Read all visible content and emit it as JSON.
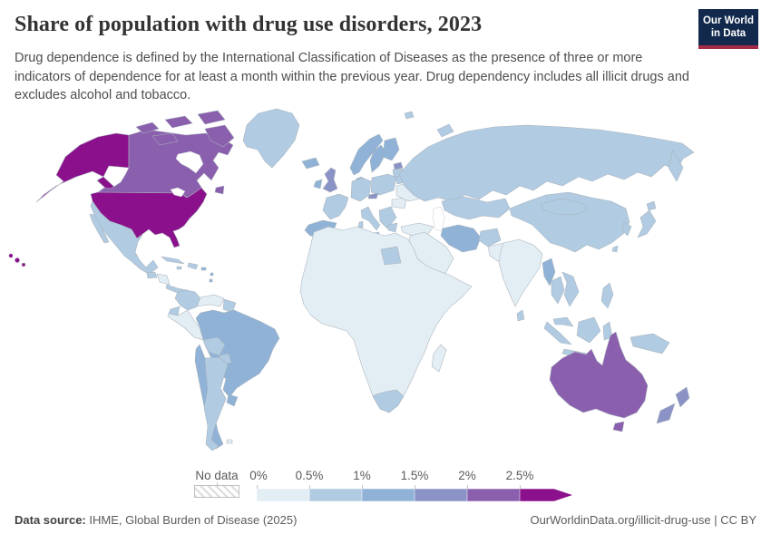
{
  "header": {
    "title": "Share of population with drug use disorders, 2023",
    "subtitle": "Drug dependence is defined by the International Classification of Diseases as the presence of three or more indicators of dependence for at least a month within the previous year. Drug dependency includes all illicit drugs and excludes alcohol and tobacco."
  },
  "logo": {
    "line1": "Our World",
    "line2": "in Data"
  },
  "legend": {
    "no_data_label": "No data",
    "ticks": [
      "0%",
      "0.5%",
      "1%",
      "1.5%",
      "2%",
      "2.5%"
    ]
  },
  "footer": {
    "source_label": "Data source:",
    "source_text": "IHME, Global Burden of Disease (2025)",
    "url_label": "OurWorldinData.org/illicit-drug-use",
    "divider": "|",
    "license_label": "CC BY"
  },
  "chart_data": {
    "type": "choropleth-map",
    "title": "Share of population with drug use disorders",
    "year": "2023",
    "unit": "share of population (%)",
    "legend_ticks": [
      "0%",
      "0.5%",
      "1%",
      "1.5%",
      "2%",
      "2.5%"
    ],
    "bins": [
      {
        "label": "0%–0.5%",
        "min": 0,
        "max": 0.5,
        "color": "#e2edf4"
      },
      {
        "label": "0.5%–1%",
        "min": 0.5,
        "max": 1,
        "color": "#b0cbe2"
      },
      {
        "label": "1%–1.5%",
        "min": 1,
        "max": 1.5,
        "color": "#8fb2d6"
      },
      {
        "label": "1.5%–2%",
        "min": 1.5,
        "max": 2,
        "color": "#8b93c6"
      },
      {
        "label": "2%–2.5%",
        "min": 2,
        "max": 2.5,
        "color": "#8a5fae"
      },
      {
        "label": "2.5%+",
        "min": 2.5,
        "max": null,
        "color": "#8b118c"
      }
    ],
    "no_data": {
      "label": "No data",
      "pattern": "diagonal-hatch"
    },
    "regions": [
      {
        "id": "united-states",
        "name": "United States",
        "bin": 5
      },
      {
        "id": "canada",
        "name": "Canada",
        "bin": 4
      },
      {
        "id": "greenland",
        "name": "Greenland",
        "bin": 1
      },
      {
        "id": "mexico",
        "name": "Mexico",
        "bin": 1
      },
      {
        "id": "guatemala",
        "name": "Guatemala",
        "bin": 1
      },
      {
        "id": "honduras-nicaragua",
        "name": "Honduras & Nicaragua",
        "bin": 0
      },
      {
        "id": "costa-rica-panama",
        "name": "Costa Rica & Panama",
        "bin": 1
      },
      {
        "id": "cuba",
        "name": "Cuba",
        "bin": 1
      },
      {
        "id": "hispaniola",
        "name": "Haiti & Dominican Republic",
        "bin": 1
      },
      {
        "id": "jamaica",
        "name": "Jamaica",
        "bin": 1
      },
      {
        "id": "puerto-rico",
        "name": "Puerto Rico",
        "bin": 2
      },
      {
        "id": "lesser-antilles",
        "name": "Lesser Antilles",
        "bin": 2
      },
      {
        "id": "colombia",
        "name": "Colombia",
        "bin": 1
      },
      {
        "id": "venezuela",
        "name": "Venezuela",
        "bin": 0
      },
      {
        "id": "guyanas",
        "name": "Guyana & Suriname",
        "bin": 1
      },
      {
        "id": "ecuador",
        "name": "Ecuador",
        "bin": 1
      },
      {
        "id": "peru",
        "name": "Peru",
        "bin": 0
      },
      {
        "id": "brazil",
        "name": "Brazil",
        "bin": 2
      },
      {
        "id": "bolivia",
        "name": "Bolivia",
        "bin": 1
      },
      {
        "id": "paraguay",
        "name": "Paraguay",
        "bin": 1
      },
      {
        "id": "chile",
        "name": "Chile",
        "bin": 2
      },
      {
        "id": "argentina",
        "name": "Argentina",
        "bin": 1
      },
      {
        "id": "uruguay",
        "name": "Uruguay",
        "bin": 2
      },
      {
        "id": "falkland",
        "name": "Falkland Islands",
        "bin": 0
      },
      {
        "id": "iceland",
        "name": "Iceland",
        "bin": 2
      },
      {
        "id": "united-kingdom",
        "name": "United Kingdom",
        "bin": 3
      },
      {
        "id": "ireland",
        "name": "Ireland",
        "bin": 2
      },
      {
        "id": "norway",
        "name": "Norway",
        "bin": 2
      },
      {
        "id": "sweden",
        "name": "Sweden",
        "bin": 2
      },
      {
        "id": "finland",
        "name": "Finland",
        "bin": 2
      },
      {
        "id": "denmark",
        "name": "Denmark",
        "bin": 2
      },
      {
        "id": "estonia",
        "name": "Estonia",
        "bin": 3
      },
      {
        "id": "latvia-lithuania",
        "name": "Latvia & Lithuania",
        "bin": 1
      },
      {
        "id": "france",
        "name": "France",
        "bin": 1
      },
      {
        "id": "spain-portugal",
        "name": "Spain & Portugal",
        "bin": 2
      },
      {
        "id": "germany-central",
        "name": "Germany & Central Europe",
        "bin": 1
      },
      {
        "id": "italy",
        "name": "Italy",
        "bin": 1
      },
      {
        "id": "poland",
        "name": "Poland",
        "bin": 1
      },
      {
        "id": "czechia",
        "name": "Czechia",
        "bin": 3
      },
      {
        "id": "balkans",
        "name": "Balkans",
        "bin": 1
      },
      {
        "id": "greece",
        "name": "Greece",
        "bin": 1
      },
      {
        "id": "romania-bulgaria",
        "name": "Romania & Bulgaria",
        "bin": 0
      },
      {
        "id": "ukraine",
        "name": "Ukraine",
        "bin": 0
      },
      {
        "id": "belarus",
        "name": "Belarus",
        "bin": 1
      },
      {
        "id": "russia",
        "name": "Russia",
        "bin": 1
      },
      {
        "id": "svalbard",
        "name": "Svalbard",
        "bin": 1
      },
      {
        "id": "turkey",
        "name": "Turkey",
        "bin": 0
      },
      {
        "id": "middle-east",
        "name": "Saudi Arabia & Middle East",
        "bin": 0
      },
      {
        "id": "iran",
        "name": "Iran",
        "bin": 2
      },
      {
        "id": "afghanistan",
        "name": "Afghanistan",
        "bin": 1
      },
      {
        "id": "pakistan",
        "name": "Pakistan",
        "bin": 0
      },
      {
        "id": "india",
        "name": "India",
        "bin": 0
      },
      {
        "id": "sri-lanka",
        "name": "Sri Lanka",
        "bin": 1
      },
      {
        "id": "myanmar",
        "name": "Myanmar",
        "bin": 2
      },
      {
        "id": "kazakhstan-central-asia",
        "name": "Kazakhstan & Central Asia",
        "bin": 1
      },
      {
        "id": "china",
        "name": "China",
        "bin": 1
      },
      {
        "id": "mongolia",
        "name": "Mongolia",
        "bin": 1
      },
      {
        "id": "korea",
        "name": "South Korea",
        "bin": 1
      },
      {
        "id": "japan",
        "name": "Japan",
        "bin": 1
      },
      {
        "id": "taiwan",
        "name": "Taiwan",
        "bin": 1
      },
      {
        "id": "thailand",
        "name": "Thailand",
        "bin": 1
      },
      {
        "id": "vietnam-laos",
        "name": "Vietnam & Laos",
        "bin": 1
      },
      {
        "id": "malaysia",
        "name": "Malaysia",
        "bin": 1
      },
      {
        "id": "sumatra",
        "name": "Indonesia (Sumatra)",
        "bin": 1
      },
      {
        "id": "java",
        "name": "Indonesia (Java)",
        "bin": 1
      },
      {
        "id": "borneo",
        "name": "Indonesia (Borneo)",
        "bin": 1
      },
      {
        "id": "sulawesi",
        "name": "Indonesia (Sulawesi)",
        "bin": 1
      },
      {
        "id": "new-guinea",
        "name": "Papua New Guinea",
        "bin": 1
      },
      {
        "id": "philippines",
        "name": "Philippines",
        "bin": 1
      },
      {
        "id": "africa-other",
        "name": "Africa (most countries)",
        "bin": 0
      },
      {
        "id": "chad-sudan",
        "name": "Chad / Sudan region",
        "bin": 1
      },
      {
        "id": "south-africa",
        "name": "South Africa",
        "bin": 1
      },
      {
        "id": "madagascar",
        "name": "Madagascar",
        "bin": 0
      },
      {
        "id": "australia",
        "name": "Australia",
        "bin": 4
      },
      {
        "id": "tasmania",
        "name": "Australia (Tasmania)",
        "bin": 4
      },
      {
        "id": "new-zealand",
        "name": "New Zealand",
        "bin": 3
      }
    ]
  }
}
